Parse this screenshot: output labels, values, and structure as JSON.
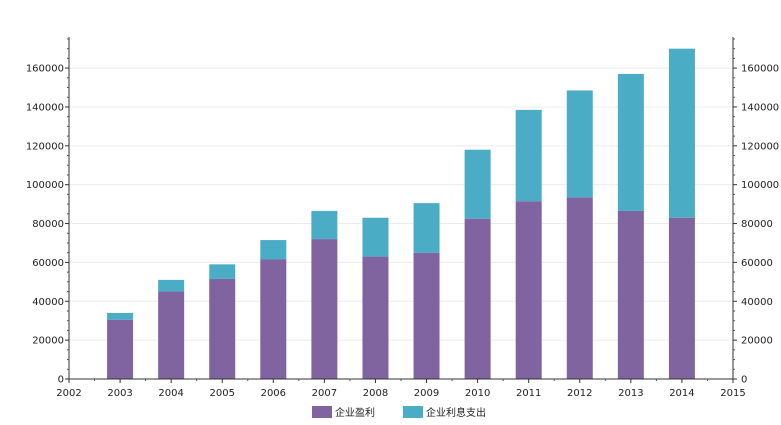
{
  "chart_data": {
    "type": "bar",
    "stacked": true,
    "title": "",
    "xlabel": "",
    "ylabel": "",
    "x_ticks": [
      "2002",
      "2003",
      "2004",
      "2005",
      "2006",
      "2007",
      "2008",
      "2009",
      "2010",
      "2011",
      "2012",
      "2013",
      "2014",
      "2015"
    ],
    "categories": [
      "2003",
      "2004",
      "2005",
      "2006",
      "2007",
      "2008",
      "2009",
      "2010",
      "2011",
      "2012",
      "2013",
      "2014"
    ],
    "series": [
      {
        "name": "企业盈利",
        "color": "#7f64a0",
        "values": [
          30500,
          45000,
          51500,
          61500,
          72000,
          63000,
          65000,
          82500,
          91500,
          93500,
          86500,
          83000
        ]
      },
      {
        "name": "企业利息支出",
        "color": "#4bacc6",
        "values": [
          3500,
          6000,
          7500,
          10000,
          14500,
          20000,
          25500,
          35500,
          47000,
          55000,
          70500,
          87000
        ]
      }
    ],
    "ylim": [
      0,
      176000
    ],
    "y_ticks": [
      "0",
      "20000",
      "40000",
      "60000",
      "80000",
      "100000",
      "120000",
      "140000",
      "160000"
    ],
    "y_tick_values": [
      0,
      20000,
      40000,
      60000,
      80000,
      100000,
      120000,
      140000,
      160000
    ],
    "y_axis_right": true,
    "grid": true,
    "legend_position": "bottom"
  }
}
